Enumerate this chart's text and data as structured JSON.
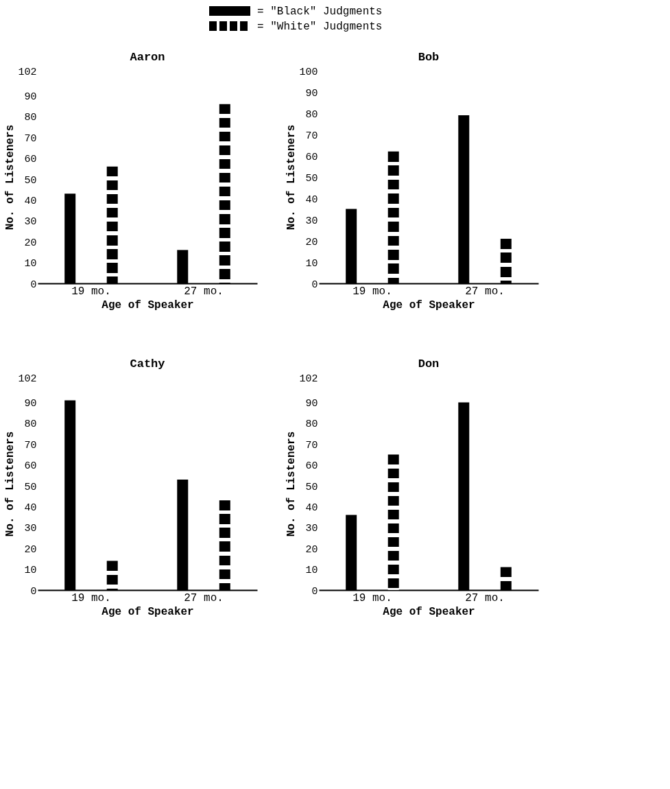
{
  "chart_data": [
    {
      "type": "bar",
      "title": "Aaron",
      "categories": [
        "19 mo.",
        "27 mo."
      ],
      "xlabel": "Age of Speaker",
      "ylabel": "No. of Listeners",
      "ylim": [
        0,
        102
      ],
      "yticks": [
        0,
        10,
        20,
        30,
        40,
        50,
        60,
        70,
        80,
        90,
        102
      ],
      "legend": "top",
      "series": [
        {
          "name": "= \"Black\" Judgments",
          "color": "#000000",
          "values": [
            43,
            16
          ]
        },
        {
          "name": "= \"White\" Judgments",
          "color": "#000000",
          "line_style": "dashed",
          "values": [
            56,
            86
          ]
        }
      ]
    },
    {
      "type": "bar",
      "title": "Bob",
      "categories": [
        "19 mo.",
        "27 mo."
      ],
      "xlabel": "Age of Speaker",
      "ylabel": "No. of Listeners",
      "ylim": [
        0,
        100
      ],
      "yticks": [
        0,
        10,
        20,
        30,
        40,
        50,
        60,
        70,
        80,
        90,
        100
      ],
      "series": [
        {
          "color": "#000000",
          "values": [
            35,
            79
          ]
        },
        {
          "color": "#000000",
          "line_style": "dashed",
          "values": [
            62,
            21
          ]
        }
      ]
    },
    {
      "type": "bar",
      "title": "Cathy",
      "categories": [
        "19 mo.",
        "27 mo."
      ],
      "xlabel": "Age of Speaker",
      "ylabel": "No. of Listeners",
      "ylim": [
        0,
        102
      ],
      "yticks": [
        0,
        10,
        20,
        30,
        40,
        50,
        60,
        70,
        80,
        90,
        102
      ],
      "series": [
        {
          "color": "#000000",
          "values": [
            91,
            53
          ]
        },
        {
          "color": "#000000",
          "line_style": "dashed",
          "values": [
            14,
            43
          ]
        }
      ]
    },
    {
      "type": "bar",
      "title": "Don",
      "categories": [
        "19 mo.",
        "27 mo."
      ],
      "xlabel": "Age of Speaker",
      "ylabel": "No. of Listeners",
      "ylim": [
        0,
        102
      ],
      "yticks": [
        0,
        10,
        20,
        30,
        40,
        50,
        60,
        70,
        80,
        90,
        102
      ],
      "series": [
        {
          "color": "#000000",
          "values": [
            36,
            90
          ]
        },
        {
          "color": "#000000",
          "line_style": "dashed",
          "values": [
            65,
            11
          ]
        }
      ]
    }
  ]
}
